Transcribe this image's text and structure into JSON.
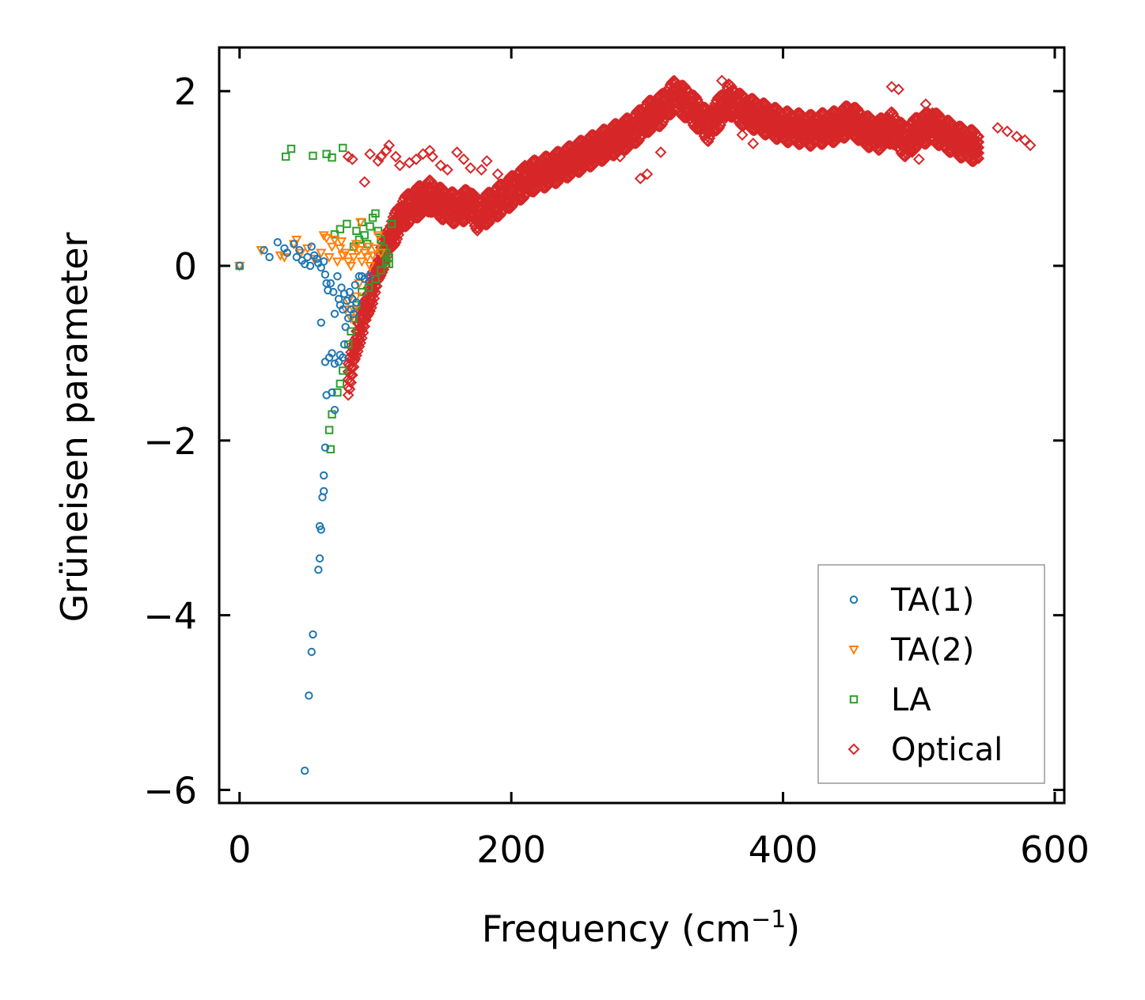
{
  "chart_data": {
    "type": "scatter",
    "xlabel": "Frequency (cm",
    "xlabel_sup": "−1",
    "xlabel_end": ")",
    "ylabel": "Grüneisen parameter",
    "xlim": [
      -15,
      607
    ],
    "ylim": [
      -6.15,
      2.5
    ],
    "x_ticks": [
      0,
      200,
      400,
      600
    ],
    "x_tick_labels": [
      "0",
      "200",
      "400",
      "600"
    ],
    "y_ticks": [
      2,
      0,
      -2,
      -4,
      -6
    ],
    "y_tick_labels": [
      "2",
      "0",
      "−2",
      "−4",
      "−6"
    ],
    "legend_position": "bottom-right",
    "series": [
      {
        "name": "TA(1)",
        "marker": "circle",
        "color": "#1f77b4",
        "points": [
          [
            0,
            0
          ],
          [
            18,
            0.18
          ],
          [
            22,
            0.1
          ],
          [
            28,
            0.27
          ],
          [
            33,
            0.2
          ],
          [
            35,
            0.15
          ],
          [
            40,
            0.25
          ],
          [
            42,
            0.1
          ],
          [
            44,
            0.18
          ],
          [
            46,
            0.06
          ],
          [
            48,
            0.02
          ],
          [
            50,
            0.1
          ],
          [
            52,
            0.0
          ],
          [
            53,
            0.22
          ],
          [
            55,
            0.12
          ],
          [
            57,
            0.08
          ],
          [
            58,
            0.03
          ],
          [
            60,
            -0.02
          ],
          [
            62,
            0.05
          ],
          [
            63,
            -0.1
          ],
          [
            64,
            -0.2
          ],
          [
            65,
            -0.28
          ],
          [
            60,
            -0.65
          ],
          [
            67,
            -0.2
          ],
          [
            69,
            -0.3
          ],
          [
            70,
            -0.55
          ],
          [
            72,
            -0.12
          ],
          [
            73,
            -0.38
          ],
          [
            74,
            -0.45
          ],
          [
            75,
            -0.25
          ],
          [
            76,
            -0.5
          ],
          [
            77,
            -0.32
          ],
          [
            78,
            -0.7
          ],
          [
            79,
            -0.4
          ],
          [
            80,
            -0.6
          ],
          [
            81,
            -0.3
          ],
          [
            82,
            -0.5
          ],
          [
            83,
            -0.38
          ],
          [
            84,
            -0.55
          ],
          [
            85,
            -0.22
          ],
          [
            86,
            -0.42
          ],
          [
            88,
            -0.12
          ],
          [
            90,
            -0.12
          ],
          [
            92,
            -0.15
          ],
          [
            95,
            -0.12
          ],
          [
            77,
            -0.9
          ],
          [
            76,
            -1.05
          ],
          [
            74,
            -1.02
          ],
          [
            73,
            -1.1
          ],
          [
            70,
            -1.12
          ],
          [
            68,
            -1.0
          ],
          [
            66,
            -1.05
          ],
          [
            63,
            -1.1
          ],
          [
            64,
            -1.48
          ],
          [
            68,
            -1.45
          ],
          [
            70,
            -1.65
          ],
          [
            63,
            -2.08
          ],
          [
            62,
            -2.4
          ],
          [
            62,
            -2.58
          ],
          [
            61,
            -2.65
          ],
          [
            59,
            -2.98
          ],
          [
            60,
            -3.02
          ],
          [
            59,
            -3.35
          ],
          [
            58,
            -3.48
          ],
          [
            54,
            -4.22
          ],
          [
            53,
            -4.42
          ],
          [
            51,
            -4.92
          ],
          [
            48,
            -5.78
          ]
        ]
      },
      {
        "name": "TA(2)",
        "marker": "triangle-down",
        "color": "#ff7f0e",
        "points": [
          [
            0,
            0
          ],
          [
            16,
            0.18
          ],
          [
            30,
            0.12
          ],
          [
            33,
            0.1
          ],
          [
            40,
            0.25
          ],
          [
            42,
            0.3
          ],
          [
            45,
            0.15
          ],
          [
            50,
            0.2
          ],
          [
            55,
            0.08
          ],
          [
            60,
            0.15
          ],
          [
            62,
            0.35
          ],
          [
            64,
            0.32
          ],
          [
            66,
            0.1
          ],
          [
            68,
            0.22
          ],
          [
            70,
            0.3
          ],
          [
            72,
            0.05
          ],
          [
            74,
            0.2
          ],
          [
            75,
            0.28
          ],
          [
            76,
            0.12
          ],
          [
            78,
            0.15
          ],
          [
            80,
            0.05
          ],
          [
            82,
            0.0
          ],
          [
            84,
            0.1
          ],
          [
            85,
            0.2
          ],
          [
            86,
            0.25
          ],
          [
            88,
            0.18
          ],
          [
            90,
            0.05
          ],
          [
            92,
            0.15
          ],
          [
            94,
            0.1
          ],
          [
            95,
            0.22
          ],
          [
            96,
            0.0
          ],
          [
            98,
            0.12
          ],
          [
            100,
            0.2
          ],
          [
            102,
            0.35
          ],
          [
            104,
            0.15
          ],
          [
            89,
            0.5
          ],
          [
            88,
            -0.2
          ],
          [
            86,
            -0.35
          ],
          [
            84,
            -0.5
          ],
          [
            82,
            -0.6
          ],
          [
            80,
            -0.4
          ],
          [
            78,
            -0.5
          ]
        ]
      },
      {
        "name": "LA",
        "marker": "square",
        "color": "#2ca02c",
        "points": [
          [
            0,
            0
          ],
          [
            34,
            1.25
          ],
          [
            38,
            1.34
          ],
          [
            54,
            1.26
          ],
          [
            64,
            1.28
          ],
          [
            68,
            1.24
          ],
          [
            76,
            1.35
          ],
          [
            70,
            0.36
          ],
          [
            74,
            0.42
          ],
          [
            79,
            0.48
          ],
          [
            84,
            0.22
          ],
          [
            86,
            0.4
          ],
          [
            88,
            0.3
          ],
          [
            90,
            0.5
          ],
          [
            92,
            0.35
          ],
          [
            94,
            0.25
          ],
          [
            96,
            0.45
          ],
          [
            98,
            0.55
          ],
          [
            100,
            0.6
          ],
          [
            102,
            0.4
          ],
          [
            104,
            0.3
          ],
          [
            106,
            0.2
          ],
          [
            108,
            0.15
          ],
          [
            110,
            0.1
          ],
          [
            112,
            0.48
          ],
          [
            108,
            0.05
          ],
          [
            110,
            0.02
          ],
          [
            104,
            -0.05
          ],
          [
            100,
            -0.15
          ],
          [
            95,
            -0.25
          ],
          [
            90,
            -0.3
          ],
          [
            86,
            -0.45
          ],
          [
            84,
            -0.6
          ],
          [
            82,
            -0.75
          ],
          [
            80,
            -0.9
          ],
          [
            76,
            -1.2
          ],
          [
            74,
            -1.35
          ],
          [
            72,
            -1.45
          ],
          [
            68,
            -1.7
          ],
          [
            66,
            -1.88
          ],
          [
            67,
            -2.1
          ]
        ]
      },
      {
        "name": "Optical",
        "marker": "diamond",
        "color": "#d62728",
        "points": [],
        "bands": [
          {
            "x": [
              80,
              88,
              95,
              100,
              105,
              110,
              115,
              120,
              130,
              140,
              150,
              160,
              170,
              175,
              185,
              200,
              215,
              230,
              250,
              270,
              290,
              300,
              310,
              320,
              330,
              345,
              360,
              370,
              380,
              400,
              420,
              440,
              450,
              460,
              470,
              480,
              490,
              500,
              510,
              520,
              530,
              545
            ],
            "y": [
              -1.3,
              -0.75,
              -0.4,
              -0.15,
              0.1,
              0.3,
              0.45,
              0.6,
              0.72,
              0.8,
              0.7,
              0.65,
              0.72,
              0.58,
              0.68,
              0.85,
              1.02,
              1.1,
              1.25,
              1.4,
              1.55,
              1.7,
              1.78,
              1.95,
              1.85,
              1.6,
              1.9,
              1.78,
              1.72,
              1.6,
              1.55,
              1.6,
              1.68,
              1.55,
              1.5,
              1.58,
              1.42,
              1.55,
              1.6,
              1.5,
              1.42,
              1.35
            ],
            "width": 0.2
          }
        ],
        "outliers": [
          [
            80,
            1.25
          ],
          [
            83,
            1.22
          ],
          [
            92,
            0.96
          ],
          [
            96,
            1.28
          ],
          [
            102,
            1.2
          ],
          [
            104,
            1.25
          ],
          [
            108,
            1.32
          ],
          [
            110,
            1.38
          ],
          [
            115,
            1.25
          ],
          [
            118,
            1.15
          ],
          [
            125,
            1.18
          ],
          [
            130,
            1.22
          ],
          [
            135,
            1.28
          ],
          [
            140,
            1.32
          ],
          [
            142,
            1.25
          ],
          [
            148,
            1.15
          ],
          [
            153,
            1.1
          ],
          [
            160,
            1.3
          ],
          [
            165,
            1.22
          ],
          [
            170,
            1.12
          ],
          [
            178,
            1.1
          ],
          [
            182,
            1.2
          ],
          [
            190,
            1.05
          ],
          [
            200,
            1.0
          ],
          [
            210,
            1.15
          ],
          [
            225,
            1.18
          ],
          [
            240,
            1.2
          ],
          [
            260,
            1.22
          ],
          [
            280,
            1.25
          ],
          [
            295,
            1.0
          ],
          [
            300,
            1.05
          ],
          [
            310,
            1.3
          ],
          [
            320,
            2.1
          ],
          [
            325,
            1.9
          ],
          [
            355,
            2.12
          ],
          [
            360,
            2.08
          ],
          [
            370,
            1.5
          ],
          [
            378,
            1.4
          ],
          [
            395,
            1.65
          ],
          [
            410,
            1.5
          ],
          [
            435,
            1.45
          ],
          [
            480,
            2.05
          ],
          [
            485,
            2.02
          ],
          [
            490,
            1.25
          ],
          [
            495,
            1.3
          ],
          [
            500,
            1.22
          ],
          [
            505,
            1.85
          ],
          [
            510,
            1.75
          ],
          [
            515,
            1.6
          ],
          [
            520,
            1.55
          ],
          [
            525,
            1.48
          ],
          [
            535,
            1.4
          ],
          [
            540,
            1.35
          ],
          [
            558,
            1.58
          ],
          [
            565,
            1.54
          ],
          [
            572,
            1.48
          ],
          [
            578,
            1.44
          ],
          [
            582,
            1.38
          ]
        ]
      }
    ]
  }
}
